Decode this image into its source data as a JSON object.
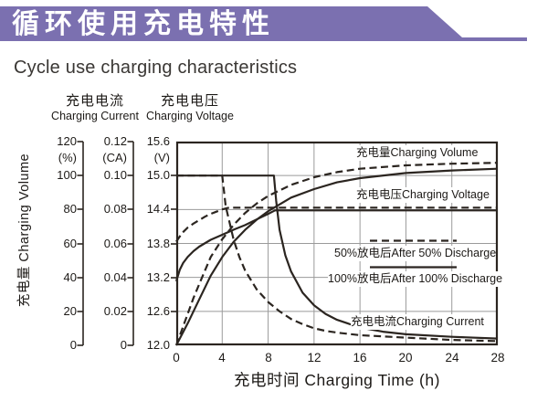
{
  "banner": {
    "title": "循环使用充电特性",
    "color": "#7b70b0"
  },
  "subtitle": "Cycle use charging characteristics",
  "axis_headers": {
    "current_zh": "充电电流",
    "current_en": "Charging Current",
    "voltage_zh": "充电电压",
    "voltage_en": "Charging Voltage"
  },
  "y_axis_rotated_label": "充电量 Charging Volume",
  "axes": {
    "volume": {
      "ticks": [
        "120",
        "100",
        "80",
        "60",
        "40",
        "20",
        "0"
      ],
      "unit": "(%)"
    },
    "current": {
      "ticks": [
        "0.12",
        "0.10",
        "0.08",
        "0.06",
        "0.04",
        "0.02",
        "0"
      ],
      "unit": "(CA)"
    },
    "voltage": {
      "ticks": [
        "15.6",
        "15.0",
        "14.4",
        "13.8",
        "13.2",
        "12.6",
        "12.0"
      ],
      "unit": "(V)"
    }
  },
  "x_axis": {
    "ticks": [
      "0",
      "4",
      "8",
      "12",
      "16",
      "20",
      "24",
      "28"
    ],
    "label": "充电时间 Charging Time (h)"
  },
  "chart_labels": {
    "volume": "充电量Charging Volume",
    "voltage": "充电电压Charging Voltage",
    "legend_50": "50%放电后After 50% Discharge",
    "legend_100": "100%放电后After 100% Discharge",
    "current": "充电电流Charging Current"
  },
  "colors": {
    "banner_purple": "#7b70b0",
    "line_black": "#2b2520",
    "grid_gray": "#9a9a9a"
  },
  "chart_data": {
    "type": "line",
    "title": "Cycle use charging characteristics",
    "xlabel": "充电时间 Charging Time (h)",
    "x_range": [
      0,
      28
    ],
    "axes_ranges": {
      "voltage": [
        12.0,
        15.6
      ],
      "current": [
        0,
        0.12
      ],
      "volume": [
        0,
        120
      ]
    },
    "grid": {
      "x_lines": [
        4,
        8,
        12,
        16,
        20,
        24
      ],
      "y_lines": [
        15.0,
        14.4,
        13.8,
        13.2,
        12.6
      ],
      "grid_on": true
    },
    "legend": [
      {
        "label": "50%放电后After 50% Discharge",
        "style": "dashed",
        "position": "inside-right"
      },
      {
        "label": "100%放电后After 100% Discharge",
        "style": "solid",
        "position": "inside-right"
      }
    ],
    "render_offsets": {
      "voltage_50": -2,
      "voltage_100": 1
    },
    "series": [
      {
        "id": "volume_50",
        "name": "Charging Volume after 50% discharge",
        "axis": "volume",
        "unit": "%",
        "style": "dashed",
        "points": [
          [
            0,
            0
          ],
          [
            0.7,
            13
          ],
          [
            1.5,
            28
          ],
          [
            2,
            36
          ],
          [
            3,
            52
          ],
          [
            4,
            62.5
          ],
          [
            5,
            71
          ],
          [
            6,
            78
          ],
          [
            7,
            83.5
          ],
          [
            8,
            88
          ],
          [
            10,
            94.5
          ],
          [
            12,
            99
          ],
          [
            14,
            102
          ],
          [
            16,
            104
          ],
          [
            20,
            106
          ],
          [
            24,
            107
          ],
          [
            28,
            107.5
          ]
        ]
      },
      {
        "id": "volume_100",
        "name": "Charging Volume after 100% discharge",
        "axis": "volume",
        "unit": "%",
        "style": "solid",
        "points": [
          [
            0,
            0
          ],
          [
            1,
            13
          ],
          [
            2,
            27
          ],
          [
            3,
            41
          ],
          [
            4,
            52
          ],
          [
            5,
            61
          ],
          [
            6,
            68
          ],
          [
            7,
            74
          ],
          [
            8,
            79
          ],
          [
            10,
            87
          ],
          [
            12,
            92
          ],
          [
            14,
            96
          ],
          [
            16,
            98.5
          ],
          [
            20,
            101.5
          ],
          [
            24,
            103
          ],
          [
            28,
            104
          ]
        ]
      },
      {
        "id": "voltage_50",
        "name": "Charging Voltage after 50% discharge",
        "axis": "voltage",
        "unit": "V",
        "style": "dashed",
        "points": [
          [
            0,
            13.8
          ],
          [
            0.5,
            13.95
          ],
          [
            1,
            14.05
          ],
          [
            1.5,
            14.12
          ],
          [
            2,
            14.18
          ],
          [
            2.5,
            14.24
          ],
          [
            3,
            14.29
          ],
          [
            3.5,
            14.33
          ],
          [
            4,
            14.37
          ],
          [
            4.6,
            14.4
          ],
          [
            28,
            14.4
          ]
        ]
      },
      {
        "id": "voltage_100",
        "name": "Charging Voltage after 100% discharge",
        "axis": "voltage",
        "unit": "V",
        "style": "solid",
        "points": [
          [
            0,
            13.15
          ],
          [
            0.3,
            13.35
          ],
          [
            0.6,
            13.47
          ],
          [
            1,
            13.58
          ],
          [
            1.5,
            13.68
          ],
          [
            2,
            13.76
          ],
          [
            3,
            13.88
          ],
          [
            4,
            13.97
          ],
          [
            5,
            14.06
          ],
          [
            6,
            14.14
          ],
          [
            7,
            14.24
          ],
          [
            8,
            14.34
          ],
          [
            8.6,
            14.4
          ],
          [
            28,
            14.4
          ]
        ]
      },
      {
        "id": "current_50",
        "name": "Charging Current after 50% discharge",
        "axis": "current",
        "unit": "CA",
        "style": "dashed",
        "points": [
          [
            0,
            0.1
          ],
          [
            4,
            0.1
          ],
          [
            4.15,
            0.091
          ],
          [
            4.3,
            0.082
          ],
          [
            5,
            0.062
          ],
          [
            5.5,
            0.052
          ],
          [
            6,
            0.044
          ],
          [
            7,
            0.033
          ],
          [
            8,
            0.0255
          ],
          [
            9,
            0.02
          ],
          [
            10,
            0.0155
          ],
          [
            11,
            0.0125
          ],
          [
            12,
            0.01
          ],
          [
            13,
            0.0085
          ],
          [
            14,
            0.0075
          ],
          [
            16,
            0.006
          ],
          [
            20,
            0.0045
          ],
          [
            24,
            0.0032
          ],
          [
            28,
            0.0025
          ]
        ]
      },
      {
        "id": "current_100",
        "name": "Charging Current after 100% discharge",
        "axis": "current",
        "unit": "CA",
        "style": "solid",
        "points": [
          [
            0,
            0.1
          ],
          [
            8.5,
            0.1
          ],
          [
            8.7,
            0.085
          ],
          [
            9,
            0.068
          ],
          [
            9.5,
            0.053
          ],
          [
            10,
            0.0435
          ],
          [
            11,
            0.031
          ],
          [
            12,
            0.0235
          ],
          [
            13,
            0.0185
          ],
          [
            14,
            0.015
          ],
          [
            16,
            0.0105
          ],
          [
            18,
            0.008
          ],
          [
            20,
            0.0065
          ],
          [
            24,
            0.005
          ],
          [
            28,
            0.004
          ]
        ]
      }
    ]
  }
}
